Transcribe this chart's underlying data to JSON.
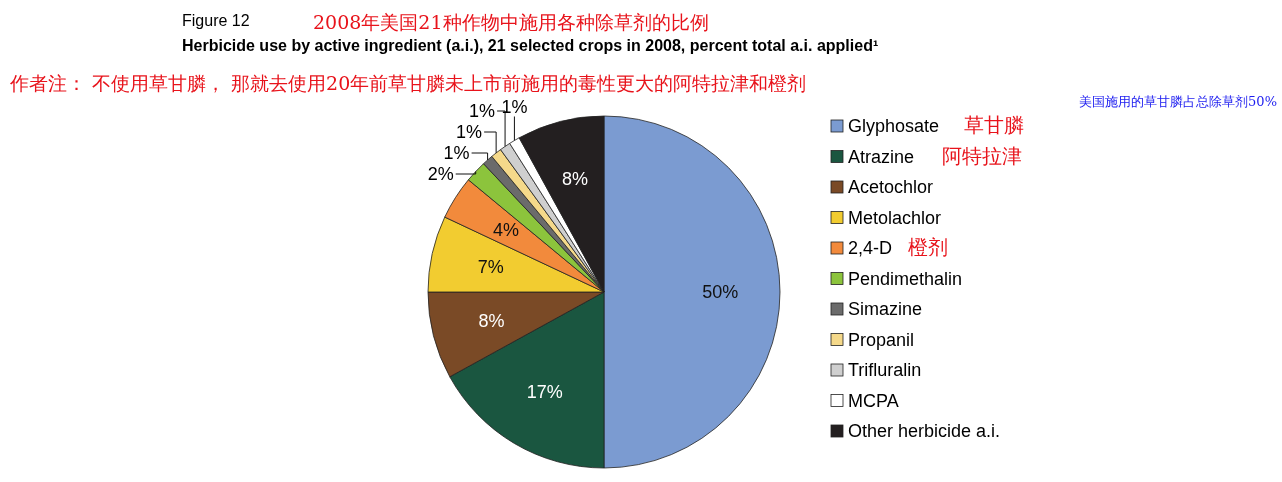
{
  "chart_data": {
    "type": "pie",
    "title": "Herbicide use by active ingredient (a.i.), 21 selected crops in 2008, percent total a.i. applied¹",
    "categories": [
      "Glyphosate",
      "Atrazine",
      "Acetochlor",
      "Metolachlor",
      "2,4-D",
      "Pendimethalin",
      "Simazine",
      "Propanil",
      "Trifluralin",
      "MCPA",
      "Other herbicide a.i."
    ],
    "values": [
      50,
      17,
      8,
      7,
      4,
      2,
      1,
      1,
      1,
      1,
      8
    ],
    "colors": [
      "#7b9bd1",
      "#1a5640",
      "#7a4a26",
      "#f2cc30",
      "#f28a3c",
      "#8cc43c",
      "#6b6b6b",
      "#f5d98a",
      "#cfcfcf",
      "#ffffff",
      "#231f20"
    ],
    "data_labels": true,
    "value_labels": [
      "50%",
      "17%",
      "8%",
      "7%",
      "4%",
      "2%",
      "1%",
      "1%",
      "1%",
      "1%",
      "8%"
    ],
    "legend": "right",
    "annotations": [
      "Figure 12",
      "2008年美国21种作物中施用各种除草剂的比例",
      "作者注：  不使用草甘膦，  那就去使用20年前草甘膦未上市前施用的毒性更大的阿特拉津和橙剂",
      "美国施用的草甘膦占总除草剂50%",
      "草甘膦",
      "阿特拉津",
      "橙剂"
    ]
  }
}
